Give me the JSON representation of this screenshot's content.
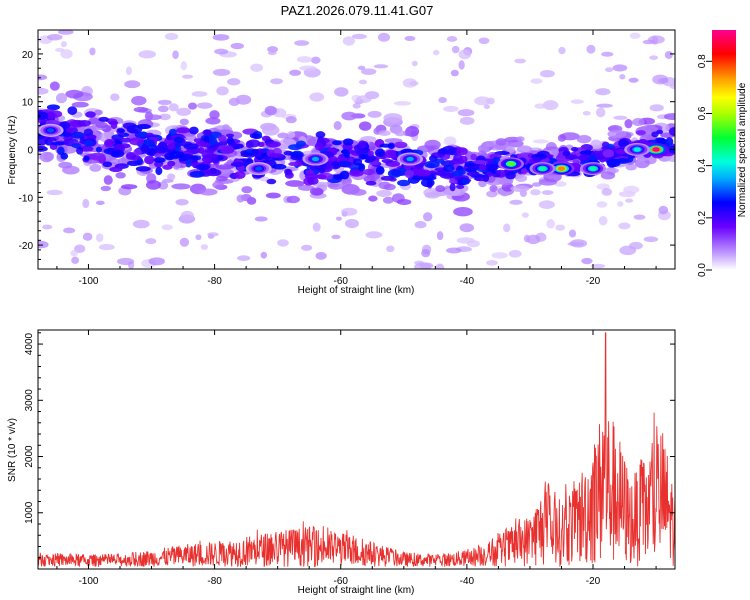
{
  "title": "PAZ1.2026.079.11.41.G07",
  "chart_data": [
    {
      "type": "heatmap",
      "name": "spectrogram",
      "xlabel": "Height of straight line (km)",
      "ylabel": "Frequency (Hz)",
      "xlim": [
        -108,
        -7
      ],
      "ylim": [
        -25,
        25
      ],
      "xticks": [
        -100,
        -80,
        -60,
        -40,
        -20
      ],
      "yticks": [
        -20,
        -10,
        0,
        10,
        20
      ],
      "colorbar": {
        "label": "Normalized spectral amplitude",
        "range": [
          0,
          0.92
        ],
        "ticks": [
          0.0,
          0.2,
          0.4,
          0.6,
          0.8
        ]
      },
      "energy_band": {
        "center_frequency_hz": [
          [
            -105,
            4
          ],
          [
            -95,
            1
          ],
          [
            -80,
            -1
          ],
          [
            -65,
            -2
          ],
          [
            -55,
            -2
          ],
          [
            -40,
            -4
          ],
          [
            -30,
            -3
          ],
          [
            -20,
            -2
          ],
          [
            -12,
            1
          ],
          [
            -8,
            1
          ]
        ],
        "hotspots": [
          {
            "x": -10,
            "y": 0,
            "amp": 0.92
          },
          {
            "x": -25,
            "y": -4,
            "amp": 0.75
          },
          {
            "x": -33,
            "y": -3,
            "amp": 0.55
          },
          {
            "x": -28,
            "y": -4,
            "amp": 0.45
          },
          {
            "x": -20,
            "y": -4,
            "amp": 0.45
          },
          {
            "x": -13,
            "y": 0,
            "amp": 0.4
          },
          {
            "x": -49,
            "y": -2,
            "amp": 0.35
          },
          {
            "x": -64,
            "y": -2,
            "amp": 0.35
          },
          {
            "x": -73,
            "y": -4,
            "amp": 0.3
          },
          {
            "x": -106,
            "y": 4,
            "amp": 0.3
          }
        ]
      }
    },
    {
      "type": "line",
      "name": "snr",
      "xlabel": "Height of straight line (km)",
      "ylabel": "SNR (10 * v/v)",
      "xlim": [
        -108,
        -7
      ],
      "ylim": [
        0,
        4250
      ],
      "xticks": [
        -100,
        -80,
        -60,
        -40,
        -20
      ],
      "yticks": [
        1000,
        2000,
        3000,
        4000
      ],
      "color": "#e8312f",
      "envelope": {
        "x": [
          -108,
          -100,
          -95,
          -90,
          -85,
          -80,
          -70,
          -65,
          -60,
          -55,
          -50,
          -45,
          -40,
          -36,
          -33,
          -30,
          -28,
          -25,
          -22,
          -20,
          -18,
          -16,
          -14,
          -12,
          -10,
          -9,
          -7
        ],
        "y": [
          250,
          220,
          230,
          300,
          400,
          450,
          650,
          720,
          620,
          450,
          260,
          220,
          300,
          480,
          700,
          950,
          1400,
          1200,
          1700,
          2300,
          3000,
          2400,
          1600,
          1900,
          2400,
          2500,
          1400
        ]
      },
      "peak": {
        "x": -18,
        "y": 4200
      }
    }
  ]
}
